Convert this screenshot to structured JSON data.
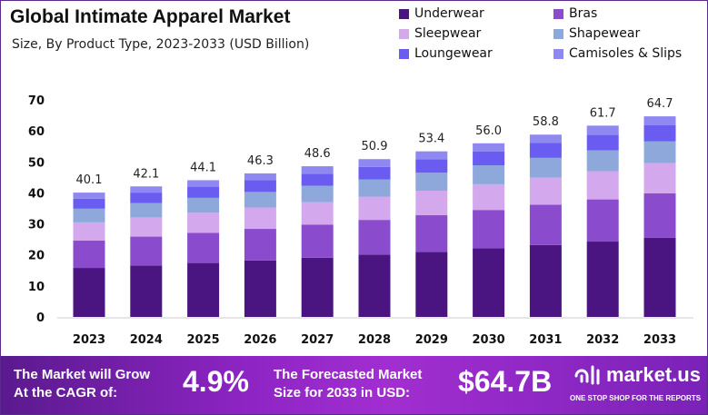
{
  "chart_data": {
    "type": "bar",
    "stacked": true,
    "title": "Global Intimate Apparel Market",
    "subtitle": "Size, By Product Type, 2023-2033 (USD Billion)",
    "categories": [
      "2023",
      "2024",
      "2025",
      "2026",
      "2027",
      "2028",
      "2029",
      "2030",
      "2031",
      "2032",
      "2033"
    ],
    "totals": [
      40.1,
      42.1,
      44.1,
      46.3,
      48.6,
      50.9,
      53.4,
      56.0,
      58.8,
      61.7,
      64.7
    ],
    "total_labels": [
      "40.1",
      "42.1",
      "44.1",
      "46.3",
      "48.6",
      "50.9",
      "53.4",
      "56.0",
      "58.8",
      "61.7",
      "64.7"
    ],
    "series": [
      {
        "name": "Underwear",
        "color": "#4a1580",
        "values": [
          15.8,
          16.6,
          17.4,
          18.2,
          19.1,
          20.1,
          21.0,
          22.1,
          23.2,
          24.3,
          25.5
        ]
      },
      {
        "name": "Bras",
        "color": "#8a4ccc",
        "values": [
          8.8,
          9.3,
          9.7,
          10.2,
          10.7,
          11.2,
          11.8,
          12.4,
          13.0,
          13.6,
          14.4
        ]
      },
      {
        "name": "Sleepwear",
        "color": "#d4a8ec",
        "values": [
          5.9,
          6.2,
          6.5,
          6.9,
          7.2,
          7.5,
          7.9,
          8.3,
          8.7,
          9.1,
          9.7
        ]
      },
      {
        "name": "Shapewear",
        "color": "#8ea8dc",
        "values": [
          4.4,
          4.6,
          4.8,
          5.0,
          5.3,
          5.5,
          5.8,
          6.1,
          6.4,
          6.7,
          7.0
        ]
      },
      {
        "name": "Loungewear",
        "color": "#6a5cf0",
        "values": [
          3.2,
          3.4,
          3.6,
          3.8,
          3.9,
          4.1,
          4.3,
          4.5,
          4.8,
          5.0,
          5.3
        ]
      },
      {
        "name": "Camisoles & Slips",
        "color": "#8e88f0",
        "values": [
          2.0,
          2.0,
          2.1,
          2.2,
          2.4,
          2.5,
          2.6,
          2.6,
          2.7,
          3.0,
          2.8
        ]
      }
    ],
    "ylim": [
      0,
      70
    ],
    "yticks": [
      "0",
      "10",
      "20",
      "30",
      "40",
      "50",
      "60",
      "70"
    ],
    "grid": false,
    "legend_position": "top-right"
  },
  "banner": {
    "cagr_label_1": "The Market will Grow",
    "cagr_label_2": "At the CAGR of:",
    "cagr_value": "4.9%",
    "forecast_label_1": "The Forecasted Market",
    "forecast_label_2": "Size for 2033 in USD:",
    "forecast_value": "$64.7B",
    "logo_text": "market.us",
    "logo_tagline": "ONE STOP SHOP FOR THE REPORTS"
  }
}
